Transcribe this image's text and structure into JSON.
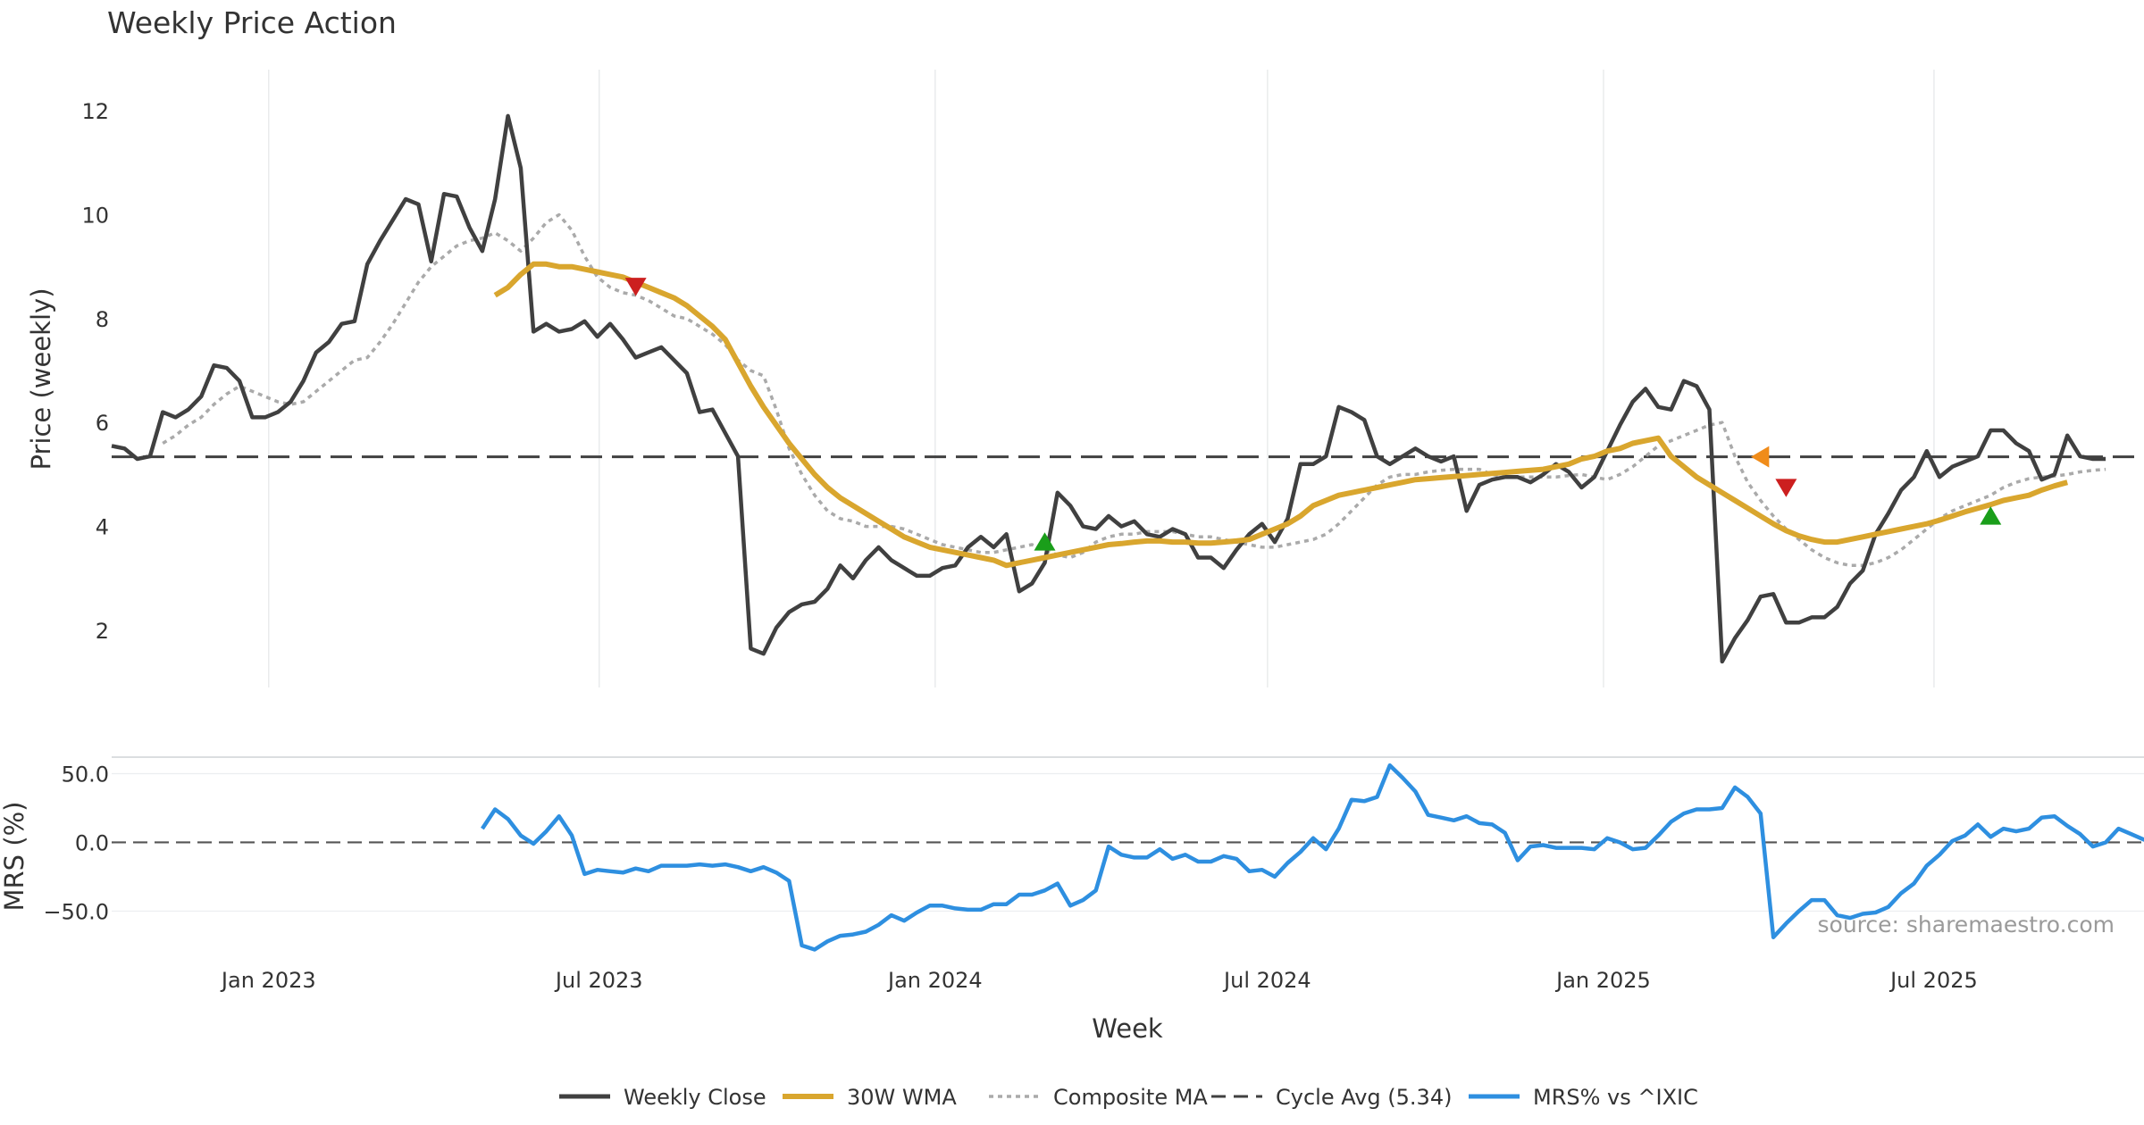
{
  "chart_data": {
    "type": "line",
    "title": "Weekly Price Action",
    "watermark": "source: sharemaestro.com",
    "xlabel": "Week",
    "x_ticks": [
      "Jan 2023",
      "Jul 2023",
      "Jan 2024",
      "Jul 2024",
      "Jan 2025",
      "Jul 2025"
    ],
    "x_range": [
      "2022-10-07",
      "2025-10-24"
    ],
    "price_panel": {
      "ylabel": "Price (weekly)",
      "ylim": [
        0.9,
        12.5
      ],
      "y_ticks": [
        2,
        4,
        6,
        8,
        10,
        12
      ],
      "series": [
        {
          "name": "Weekly Close",
          "color": "#404040",
          "style": "solid",
          "start": "2022-10-07",
          "values": [
            5.55,
            5.5,
            5.3,
            5.35,
            6.2,
            6.1,
            6.25,
            6.5,
            7.1,
            7.05,
            6.8,
            6.1,
            6.1,
            6.2,
            6.4,
            6.8,
            7.35,
            7.55,
            7.9,
            7.95,
            9.05,
            9.5,
            9.9,
            10.3,
            10.2,
            9.1,
            10.4,
            10.35,
            9.75,
            9.3,
            10.3,
            11.9,
            10.9,
            7.75,
            7.9,
            7.75,
            7.8,
            7.95,
            7.65,
            7.9,
            7.6,
            7.25,
            7.35,
            7.45,
            7.2,
            6.95,
            6.2,
            6.25,
            5.8,
            5.35,
            1.65,
            1.55,
            2.05,
            2.35,
            2.5,
            2.55,
            2.8,
            3.25,
            3.0,
            3.35,
            3.6,
            3.35,
            3.2,
            3.05,
            3.05,
            3.2,
            3.25,
            3.6,
            3.8,
            3.6,
            3.85,
            2.75,
            2.9,
            3.3,
            4.65,
            4.4,
            4.0,
            3.95,
            4.2,
            4.0,
            4.1,
            3.85,
            3.8,
            3.95,
            3.85,
            3.4,
            3.4,
            3.2,
            3.55,
            3.85,
            4.05,
            3.7,
            4.15,
            5.2,
            5.2,
            5.35,
            6.3,
            6.2,
            6.05,
            5.35,
            5.2,
            5.35,
            5.5,
            5.35,
            5.25,
            5.35,
            4.3,
            4.8,
            4.9,
            4.95,
            4.95,
            4.85,
            5.0,
            5.2,
            5.05,
            4.75,
            4.95,
            5.45,
            5.95,
            6.4,
            6.65,
            6.3,
            6.25,
            6.8,
            6.7,
            6.25,
            1.4,
            1.85,
            2.2,
            2.65,
            2.7,
            2.15,
            2.15,
            2.25,
            2.25,
            2.45,
            2.9,
            3.15,
            3.85,
            4.25,
            4.7,
            4.95,
            5.45,
            4.95,
            5.15,
            5.25,
            5.35,
            5.85,
            5.85,
            5.6,
            5.45,
            4.9,
            5.0,
            5.75,
            5.35,
            5.3,
            5.3
          ]
        },
        {
          "name": "30W WMA",
          "color": "#d9a62e",
          "style": "solid",
          "start": "2023-05-05",
          "values": [
            8.45,
            8.6,
            8.85,
            9.05,
            9.05,
            9.0,
            9.0,
            8.95,
            8.9,
            8.85,
            8.8,
            8.7,
            8.6,
            8.5,
            8.4,
            8.25,
            8.05,
            7.85,
            7.6,
            7.15,
            6.7,
            6.3,
            5.95,
            5.6,
            5.3,
            5.0,
            4.75,
            4.55,
            4.4,
            4.25,
            4.1,
            3.95,
            3.8,
            3.7,
            3.6,
            3.55,
            3.5,
            3.45,
            3.4,
            3.35,
            3.25,
            3.3,
            3.35,
            3.4,
            3.45,
            3.5,
            3.55,
            3.6,
            3.65,
            3.67,
            3.7,
            3.72,
            3.72,
            3.7,
            3.7,
            3.68,
            3.68,
            3.7,
            3.72,
            3.75,
            3.85,
            3.95,
            4.05,
            4.2,
            4.4,
            4.5,
            4.6,
            4.65,
            4.7,
            4.75,
            4.8,
            4.85,
            4.9,
            4.92,
            4.94,
            4.96,
            4.98,
            5.0,
            5.02,
            5.04,
            5.06,
            5.08,
            5.1,
            5.15,
            5.2,
            5.3,
            5.35,
            5.45,
            5.5,
            5.6,
            5.65,
            5.7,
            5.35,
            5.15,
            4.95,
            4.8,
            4.65,
            4.5,
            4.35,
            4.2,
            4.05,
            3.92,
            3.82,
            3.75,
            3.7,
            3.7,
            3.75,
            3.8,
            3.85,
            3.9,
            3.95,
            4.0,
            4.05,
            4.12,
            4.2,
            4.28,
            4.35,
            4.42,
            4.5,
            4.55,
            4.6,
            4.7,
            4.78,
            4.85
          ]
        },
        {
          "name": "Composite MA",
          "color": "#aaaaaa",
          "style": "dotted",
          "start": "2022-11-04",
          "values": [
            5.6,
            5.75,
            5.95,
            6.1,
            6.35,
            6.55,
            6.7,
            6.6,
            6.5,
            6.4,
            6.35,
            6.4,
            6.6,
            6.8,
            7.0,
            7.2,
            7.25,
            7.55,
            7.9,
            8.3,
            8.7,
            9.0,
            9.2,
            9.4,
            9.5,
            9.55,
            9.65,
            9.5,
            9.3,
            9.55,
            9.85,
            10.0,
            9.7,
            9.2,
            8.8,
            8.6,
            8.5,
            8.45,
            8.35,
            8.2,
            8.05,
            8.0,
            7.85,
            7.7,
            7.5,
            7.2,
            7.0,
            6.9,
            6.25,
            5.5,
            5.0,
            4.6,
            4.3,
            4.15,
            4.1,
            4.0,
            4.0,
            4.0,
            3.95,
            3.85,
            3.75,
            3.65,
            3.6,
            3.55,
            3.5,
            3.5,
            3.55,
            3.6,
            3.65,
            3.55,
            3.45,
            3.4,
            3.5,
            3.7,
            3.8,
            3.85,
            3.85,
            3.9,
            3.9,
            3.9,
            3.85,
            3.8,
            3.8,
            3.75,
            3.7,
            3.65,
            3.6,
            3.6,
            3.65,
            3.7,
            3.75,
            3.85,
            4.05,
            4.3,
            4.55,
            4.8,
            4.95,
            5.0,
            5.0,
            5.05,
            5.08,
            5.1,
            5.1,
            5.1,
            5.0,
            4.95,
            4.95,
            4.95,
            4.95,
            4.95,
            4.98,
            5.0,
            4.95,
            4.9,
            5.0,
            5.15,
            5.35,
            5.55,
            5.65,
            5.75,
            5.85,
            5.95,
            6.0,
            5.35,
            4.85,
            4.5,
            4.2,
            3.95,
            3.75,
            3.55,
            3.4,
            3.3,
            3.25,
            3.25,
            3.3,
            3.4,
            3.55,
            3.75,
            3.95,
            4.15,
            4.3,
            4.4,
            4.5,
            4.6,
            4.75,
            4.85,
            4.92,
            4.95,
            4.97,
            5.0,
            5.05,
            5.08,
            5.1
          ]
        },
        {
          "name": "Cycle Avg (5.34)",
          "color": "#404040",
          "style": "dashed",
          "value": 5.34
        }
      ],
      "markers": [
        {
          "kind": "sell",
          "shape": "down-triangle",
          "color": "#cc1f1f",
          "date": "2023-07-21",
          "value": 8.62
        },
        {
          "kind": "buy",
          "shape": "up-triangle",
          "color": "#1a9e1a",
          "date": "2024-03-01",
          "value": 3.7
        },
        {
          "kind": "warning",
          "shape": "left-triangle",
          "color": "#f08c1a",
          "date": "2025-03-28",
          "value": 5.34
        },
        {
          "kind": "sell",
          "shape": "down-triangle",
          "color": "#cc1f1f",
          "date": "2025-04-11",
          "value": 4.75
        },
        {
          "kind": "buy",
          "shape": "up-triangle",
          "color": "#1a9e1a",
          "date": "2025-08-01",
          "value": 4.2
        }
      ]
    },
    "mrs_panel": {
      "ylabel": "MRS (%)",
      "ylim": [
        -77,
        62
      ],
      "y_ticks": [
        50.0,
        0.0,
        -50.0
      ],
      "y_tick_labels": [
        "50.0",
        "0.0",
        "−50.0"
      ],
      "zero_line": {
        "value": 0,
        "style": "dashed"
      },
      "series": [
        {
          "name": "MRS% vs ^IXIC",
          "color": "#2e8fe0",
          "style": "solid",
          "start": "2023-04-28",
          "values": [
            10,
            24,
            17,
            5,
            -1,
            8,
            19,
            5,
            -23,
            -20,
            -21,
            -22,
            -19,
            -21,
            -17,
            -17,
            -17,
            -16,
            -17,
            -16,
            -18,
            -21,
            -18,
            -22,
            -28,
            -75,
            -78,
            -72,
            -68,
            -67,
            -65,
            -60,
            -53,
            -57,
            -51,
            -46,
            -46,
            -48,
            -49,
            -49,
            -45,
            -45,
            -38,
            -38,
            -35,
            -30,
            -46,
            -42,
            -35,
            -3,
            -9,
            -11,
            -11,
            -5,
            -12,
            -9,
            -14,
            -14,
            -10,
            -12,
            -21,
            -20,
            -25,
            -15,
            -7,
            3,
            -5,
            10,
            31,
            30,
            33,
            56,
            47,
            37,
            20,
            18,
            16,
            19,
            14,
            13,
            7,
            -13,
            -3,
            -2,
            -4,
            -4,
            -4,
            -5,
            3,
            0,
            -5,
            -4,
            5,
            15,
            21,
            24,
            24,
            25,
            40,
            33,
            21,
            -69,
            -59,
            -50,
            -42,
            -42,
            -53,
            -55,
            -52,
            -51,
            -47,
            -37,
            -30,
            -17,
            -9,
            1,
            5,
            13,
            4,
            10,
            8,
            10,
            18,
            19,
            12,
            6,
            -3,
            0,
            10,
            6,
            2,
            0
          ]
        }
      ]
    },
    "legend": {
      "placement": "bottom-center",
      "entries": [
        "Weekly Close",
        "30W WMA",
        "Composite MA",
        "Cycle Avg (5.34)",
        "MRS% vs ^IXIC"
      ]
    }
  }
}
